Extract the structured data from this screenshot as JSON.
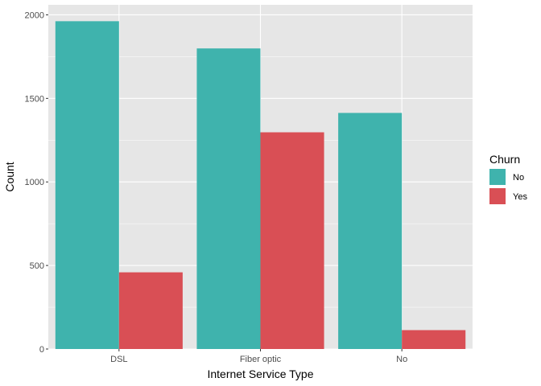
{
  "chart_data": {
    "type": "bar",
    "xlabel": "Internet Service Type",
    "ylabel": "Count",
    "categories": [
      "DSL",
      "Fiber optic",
      "No"
    ],
    "series": [
      {
        "name": "No",
        "values": [
          1962,
          1799,
          1413
        ],
        "color": "#3fb3ad"
      },
      {
        "name": "Yes",
        "values": [
          459,
          1297,
          113
        ],
        "color": "#d94f55"
      }
    ],
    "ylim": [
      0,
      2060
    ],
    "yticks": [
      0,
      500,
      1000,
      1500,
      2000
    ],
    "grid": true,
    "legend": {
      "title": "Churn",
      "position": "right"
    },
    "panel_background": "#e6e6e6",
    "grid_color": "#ffffff"
  }
}
